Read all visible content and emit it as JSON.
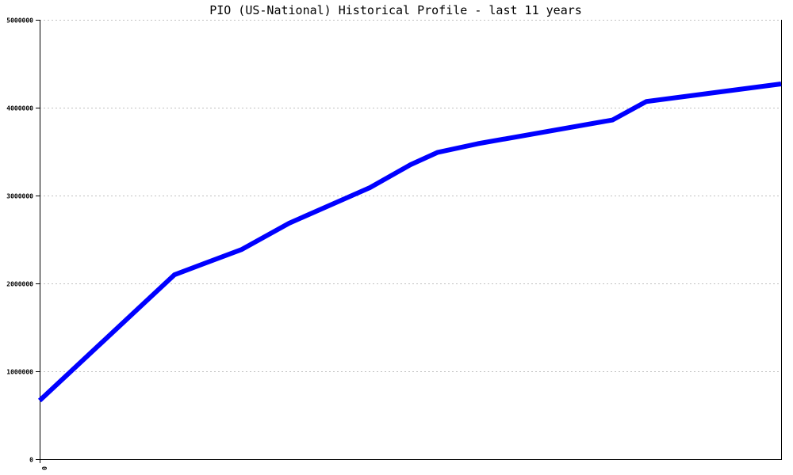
{
  "chart_data": {
    "type": "line",
    "title": "PIO (US-National) Historical Profile - last 11 years",
    "xlabel": "",
    "ylabel": "",
    "xlim": [
      0,
      11
    ],
    "ylim": [
      0,
      5000000
    ],
    "x_tick_labels": [
      "0"
    ],
    "y_ticks": [
      0,
      1000000,
      2000000,
      3000000,
      4000000,
      5000000
    ],
    "y_tick_labels": [
      "0",
      "1000000",
      "2000000",
      "3000000",
      "4000000",
      "5000000"
    ],
    "grid": "horizontal dotted",
    "legend": "none",
    "series": [
      {
        "color": "#0000ff",
        "x": [
          0,
          2.0,
          3.0,
          3.7,
          4.9,
          5.5,
          5.9,
          6.5,
          8.5,
          9.0,
          11.0
        ],
        "y": [
          667000,
          2099000,
          2387000,
          2685000,
          3090000,
          3350000,
          3490000,
          3590000,
          3860000,
          4070000,
          4270000
        ]
      }
    ],
    "colors": {
      "line": "#0000ff",
      "grid": "#c0c0c0",
      "axis": "#000000"
    }
  }
}
